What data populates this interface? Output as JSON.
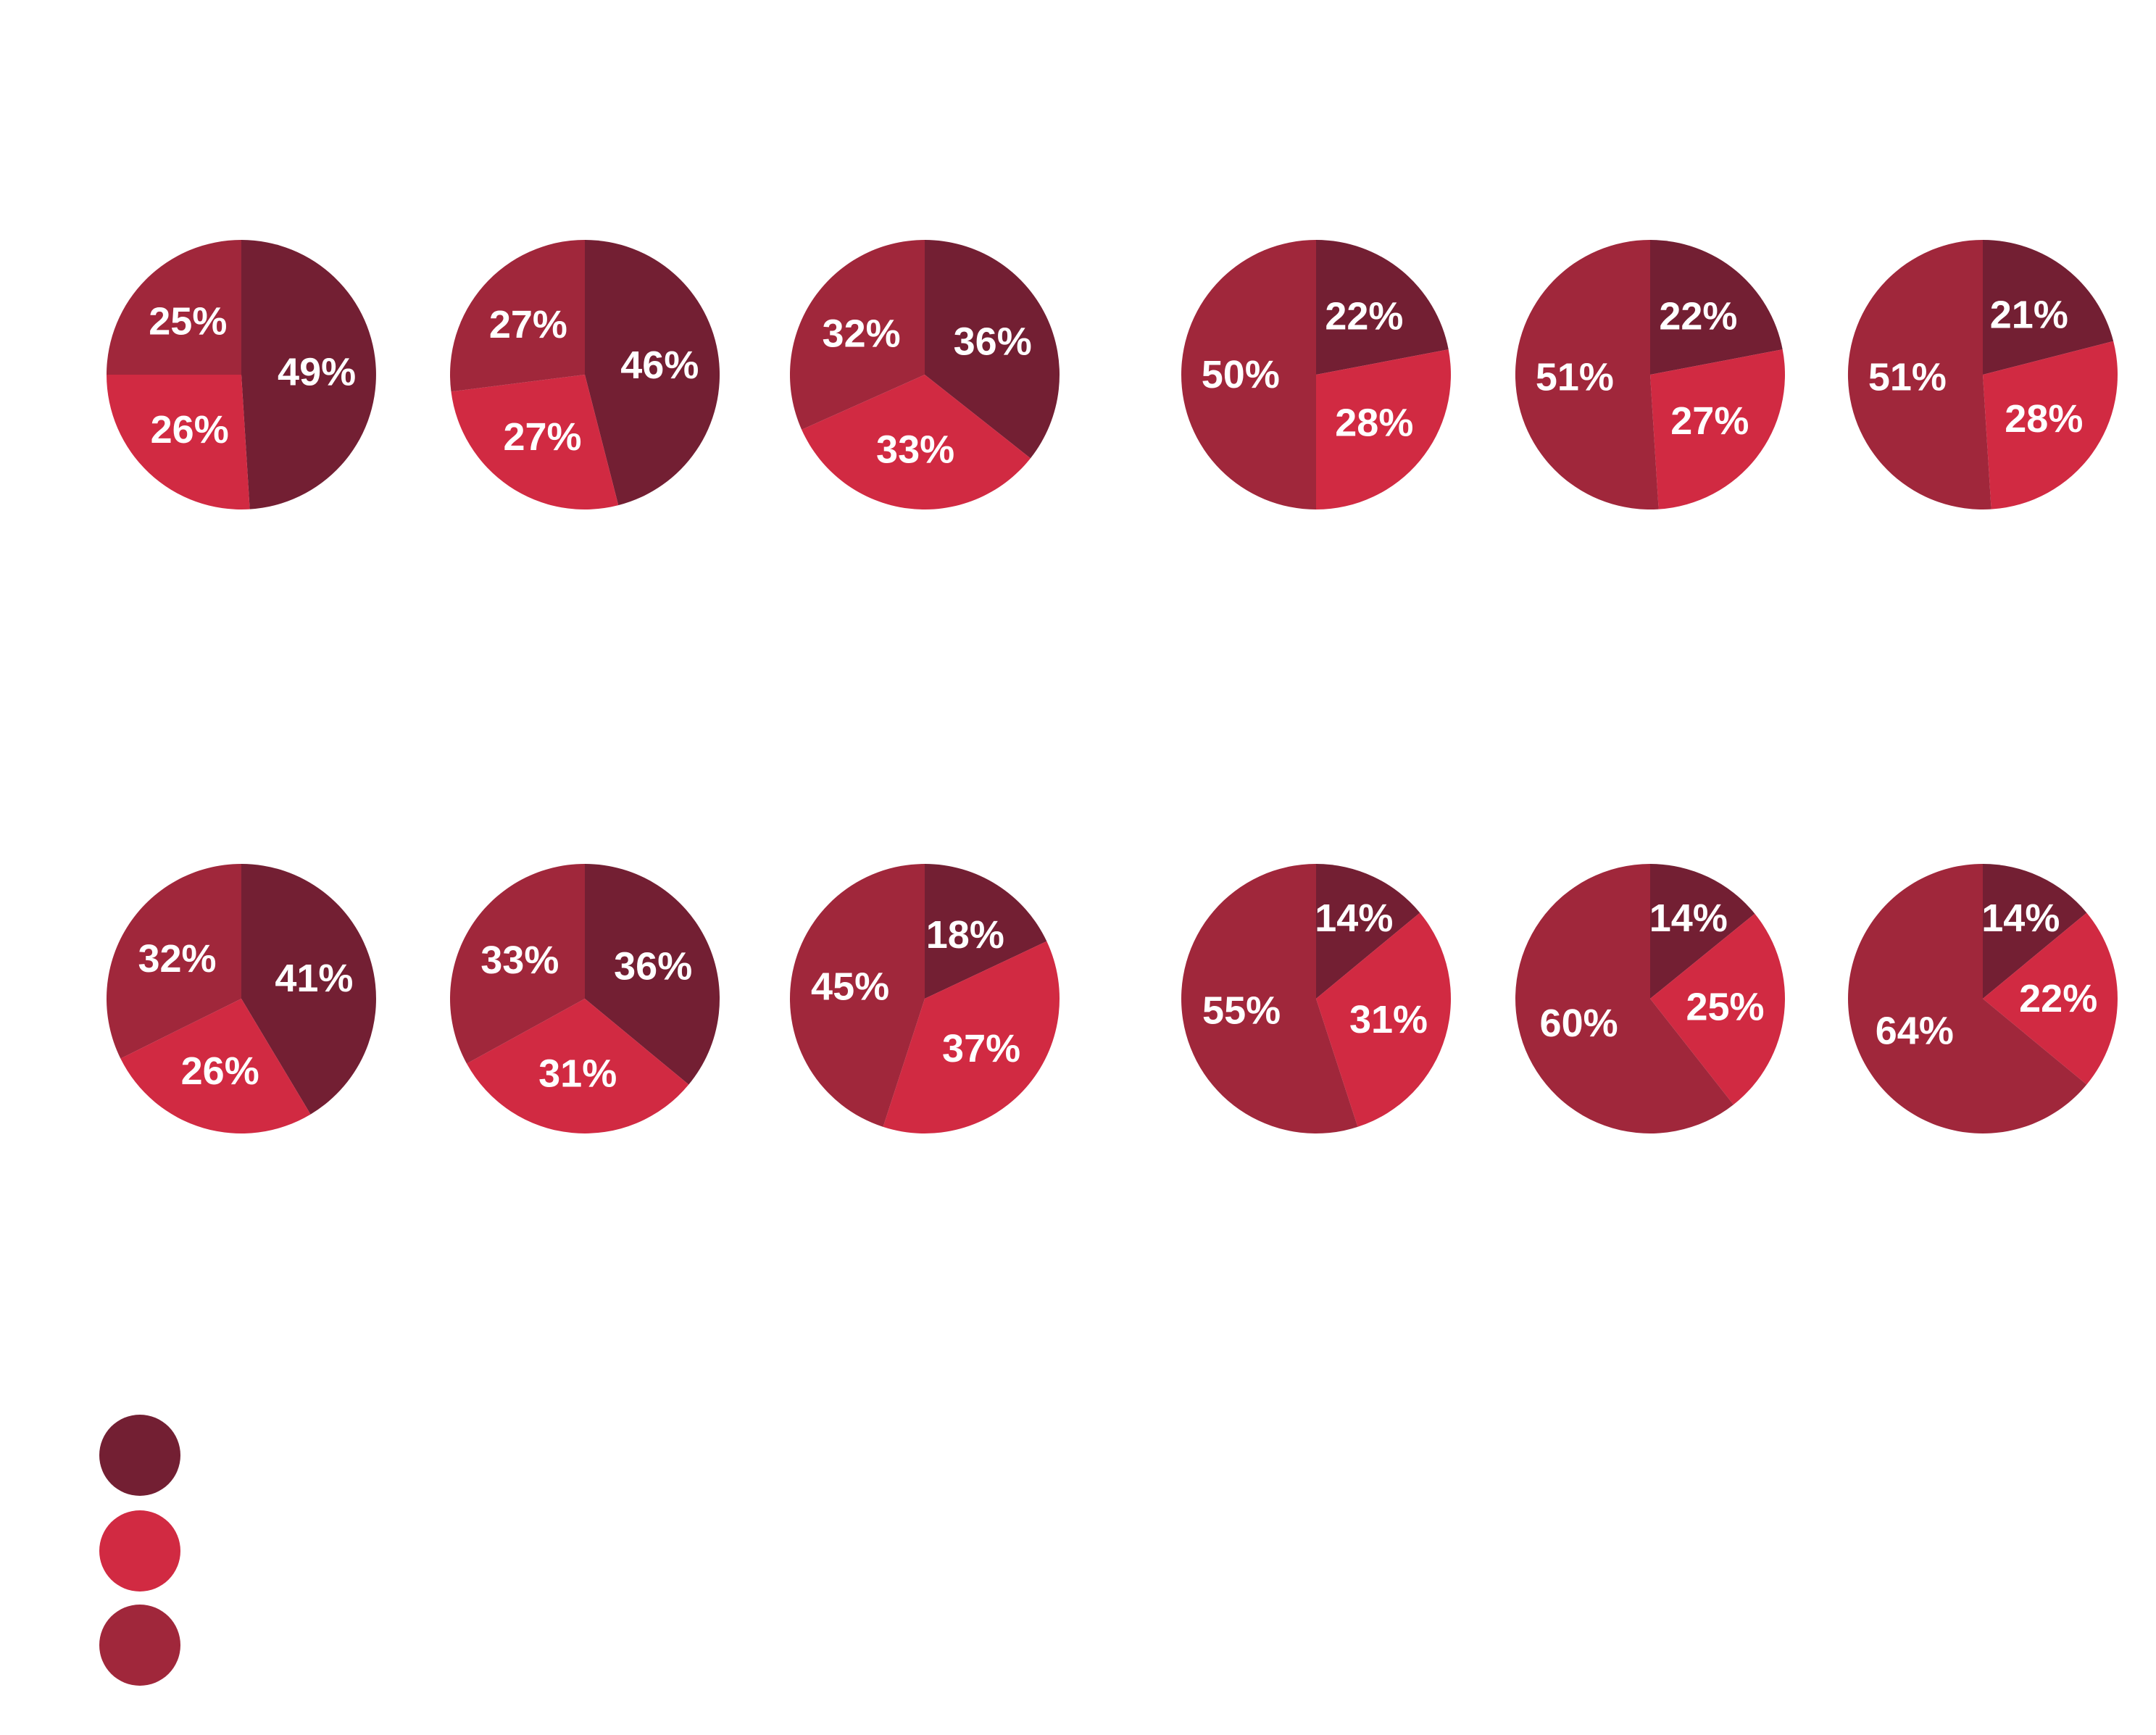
{
  "colors": {
    "series1": "#731F33",
    "series2": "#D12A42",
    "series3": "#A0273B",
    "label": "#FFFFFF",
    "background": "#FFFFFF"
  },
  "chart_data": [
    {
      "type": "pie",
      "row": 1,
      "group": "left",
      "slices": [
        {
          "series": 1,
          "value": 49,
          "label": "49%"
        },
        {
          "series": 2,
          "value": 26,
          "label": "26%"
        },
        {
          "series": 3,
          "value": 25,
          "label": "25%"
        }
      ]
    },
    {
      "type": "pie",
      "row": 1,
      "group": "left",
      "slices": [
        {
          "series": 1,
          "value": 46,
          "label": "46%"
        },
        {
          "series": 2,
          "value": 27,
          "label": "27%"
        },
        {
          "series": 3,
          "value": 27,
          "label": "27%"
        }
      ]
    },
    {
      "type": "pie",
      "row": 1,
      "group": "left",
      "slices": [
        {
          "series": 1,
          "value": 36,
          "label": "36%"
        },
        {
          "series": 2,
          "value": 33,
          "label": "33%"
        },
        {
          "series": 3,
          "value": 32,
          "label": "32%"
        }
      ]
    },
    {
      "type": "pie",
      "row": 1,
      "group": "right",
      "slices": [
        {
          "series": 1,
          "value": 22,
          "label": "22%"
        },
        {
          "series": 2,
          "value": 28,
          "label": "28%"
        },
        {
          "series": 3,
          "value": 50,
          "label": "50%"
        }
      ]
    },
    {
      "type": "pie",
      "row": 1,
      "group": "right",
      "slices": [
        {
          "series": 1,
          "value": 22,
          "label": "22%"
        },
        {
          "series": 2,
          "value": 27,
          "label": "27%"
        },
        {
          "series": 3,
          "value": 51,
          "label": "51%"
        }
      ]
    },
    {
      "type": "pie",
      "row": 1,
      "group": "right",
      "slices": [
        {
          "series": 1,
          "value": 21,
          "label": "21%"
        },
        {
          "series": 2,
          "value": 28,
          "label": "28%"
        },
        {
          "series": 3,
          "value": 51,
          "label": "51%"
        }
      ]
    },
    {
      "type": "pie",
      "row": 2,
      "group": "left",
      "slices": [
        {
          "series": 1,
          "value": 41,
          "label": "41%"
        },
        {
          "series": 2,
          "value": 26,
          "label": "26%"
        },
        {
          "series": 3,
          "value": 32,
          "label": "32%"
        }
      ]
    },
    {
      "type": "pie",
      "row": 2,
      "group": "left",
      "slices": [
        {
          "series": 1,
          "value": 36,
          "label": "36%"
        },
        {
          "series": 2,
          "value": 31,
          "label": "31%"
        },
        {
          "series": 3,
          "value": 33,
          "label": "33%"
        }
      ]
    },
    {
      "type": "pie",
      "row": 2,
      "group": "left",
      "slices": [
        {
          "series": 1,
          "value": 18,
          "label": "18%"
        },
        {
          "series": 2,
          "value": 37,
          "label": "37%"
        },
        {
          "series": 3,
          "value": 45,
          "label": "45%"
        }
      ]
    },
    {
      "type": "pie",
      "row": 2,
      "group": "right",
      "slices": [
        {
          "series": 1,
          "value": 14,
          "label": "14%"
        },
        {
          "series": 2,
          "value": 31,
          "label": "31%"
        },
        {
          "series": 3,
          "value": 55,
          "label": "55%"
        }
      ]
    },
    {
      "type": "pie",
      "row": 2,
      "group": "right",
      "slices": [
        {
          "series": 1,
          "value": 14,
          "label": "14%"
        },
        {
          "series": 2,
          "value": 25,
          "label": "25%"
        },
        {
          "series": 3,
          "value": 60,
          "label": "60%"
        }
      ]
    },
    {
      "type": "pie",
      "row": 2,
      "group": "right",
      "slices": [
        {
          "series": 1,
          "value": 14,
          "label": "14%"
        },
        {
          "series": 2,
          "value": 22,
          "label": "22%"
        },
        {
          "series": 3,
          "value": 64,
          "label": "64%"
        }
      ]
    }
  ],
  "legend": {
    "placement": "bottom-left",
    "items": [
      {
        "series": 1,
        "text": ""
      },
      {
        "series": 2,
        "text": ""
      },
      {
        "series": 3,
        "text": ""
      }
    ]
  }
}
